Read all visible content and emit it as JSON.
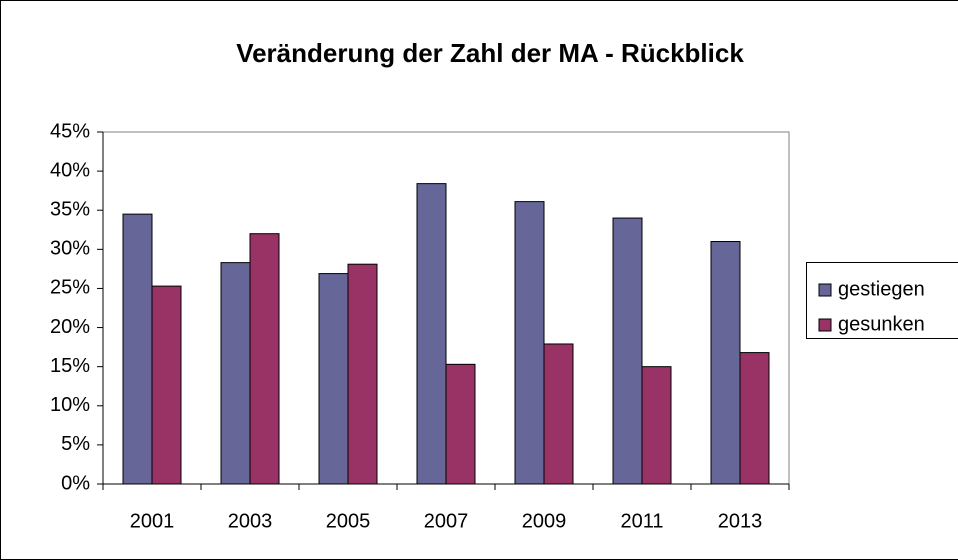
{
  "chart_data": {
    "type": "bar",
    "title": "Veränderung der Zahl der MA - Rückblick",
    "categories": [
      "2001",
      "2003",
      "2005",
      "2007",
      "2009",
      "2011",
      "2013"
    ],
    "series": [
      {
        "name": "gestiegen",
        "color": "#666699",
        "values": [
          34.5,
          28.3,
          26.9,
          38.4,
          36.1,
          34.0,
          31.0
        ]
      },
      {
        "name": "gesunken",
        "color": "#993366",
        "values": [
          25.3,
          32.0,
          28.1,
          15.3,
          17.9,
          15.0,
          16.8
        ]
      }
    ],
    "ylim": [
      0,
      45
    ],
    "yticks": [
      {
        "value": 0,
        "label": "0%"
      },
      {
        "value": 5,
        "label": "5%"
      },
      {
        "value": 10,
        "label": "10%"
      },
      {
        "value": 15,
        "label": "15%"
      },
      {
        "value": 20,
        "label": "20%"
      },
      {
        "value": 25,
        "label": "25%"
      },
      {
        "value": 30,
        "label": "30%"
      },
      {
        "value": 35,
        "label": "35%"
      },
      {
        "value": 40,
        "label": "40%"
      },
      {
        "value": 45,
        "label": "45%"
      }
    ],
    "legend": "right"
  }
}
